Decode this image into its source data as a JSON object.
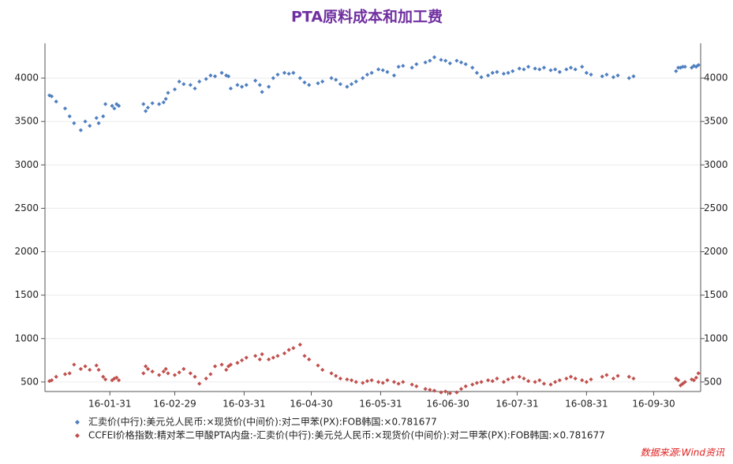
{
  "chart_data": {
    "type": "scatter",
    "title": "PTA原料成本和加工费",
    "x": [
      "16-01-04",
      "16-01-05",
      "16-01-07",
      "16-01-11",
      "16-01-13",
      "16-01-15",
      "16-01-18",
      "16-01-20",
      "16-01-22",
      "16-01-25",
      "16-01-26",
      "16-01-28",
      "16-01-29",
      "16-02-01",
      "16-02-02",
      "16-02-03",
      "16-02-04",
      "16-02-15",
      "16-02-16",
      "16-02-17",
      "16-02-19",
      "16-02-22",
      "16-02-24",
      "16-02-25",
      "16-02-26",
      "16-02-29",
      "16-03-02",
      "16-03-04",
      "16-03-07",
      "16-03-09",
      "16-03-11",
      "16-03-14",
      "16-03-16",
      "16-03-18",
      "16-03-21",
      "16-03-23",
      "16-03-24",
      "16-03-25",
      "16-03-28",
      "16-03-30",
      "16-04-01",
      "16-04-05",
      "16-04-07",
      "16-04-08",
      "16-04-11",
      "16-04-13",
      "16-04-15",
      "16-04-18",
      "16-04-20",
      "16-04-22",
      "16-04-25",
      "16-04-27",
      "16-04-29",
      "16-05-03",
      "16-05-05",
      "16-05-09",
      "16-05-11",
      "16-05-13",
      "16-05-16",
      "16-05-18",
      "16-05-20",
      "16-05-23",
      "16-05-25",
      "16-05-27",
      "16-05-30",
      "16-06-01",
      "16-06-03",
      "16-06-06",
      "16-06-08",
      "16-06-10",
      "16-06-14",
      "16-06-16",
      "16-06-20",
      "16-06-22",
      "16-06-24",
      "16-06-27",
      "16-06-29",
      "16-07-01",
      "16-07-04",
      "16-07-06",
      "16-07-08",
      "16-07-11",
      "16-07-13",
      "16-07-15",
      "16-07-18",
      "16-07-20",
      "16-07-22",
      "16-07-25",
      "16-07-27",
      "16-07-29",
      "16-08-01",
      "16-08-03",
      "16-08-05",
      "16-08-08",
      "16-08-10",
      "16-08-12",
      "16-08-15",
      "16-08-17",
      "16-08-19",
      "16-08-22",
      "16-08-24",
      "16-08-26",
      "16-08-29",
      "16-08-31",
      "16-09-02",
      "16-09-07",
      "16-09-09",
      "16-09-12",
      "16-09-14",
      "16-09-19",
      "16-09-21",
      "16-10-10",
      "16-10-11",
      "16-10-12",
      "16-10-13",
      "16-10-14",
      "16-10-17",
      "16-10-18",
      "16-10-19",
      "16-10-20"
    ],
    "series": [
      {
        "name": "汇卖价(中行):美元兑人民币:×现货价(中间价):对二甲苯(PX):FOB韩国:×0.781677",
        "color": "#4f7fc0",
        "values": [
          3800,
          3790,
          3730,
          3650,
          3560,
          3480,
          3400,
          3500,
          3450,
          3540,
          3480,
          3560,
          3700,
          3680,
          3650,
          3700,
          3680,
          3700,
          3620,
          3660,
          3710,
          3700,
          3720,
          3760,
          3830,
          3870,
          3960,
          3930,
          3920,
          3880,
          3960,
          3990,
          4030,
          4020,
          4060,
          4030,
          4020,
          3880,
          3920,
          3900,
          3920,
          3970,
          3920,
          3840,
          3900,
          4000,
          4040,
          4060,
          4050,
          4060,
          4000,
          3950,
          3920,
          3940,
          3960,
          4000,
          3980,
          3930,
          3900,
          3930,
          3960,
          4000,
          4040,
          4060,
          4100,
          4090,
          4070,
          4030,
          4130,
          4140,
          4120,
          4160,
          4180,
          4200,
          4240,
          4210,
          4200,
          4170,
          4200,
          4180,
          4160,
          4120,
          4060,
          4010,
          4030,
          4060,
          4070,
          4050,
          4060,
          4080,
          4110,
          4100,
          4130,
          4110,
          4100,
          4120,
          4090,
          4100,
          4070,
          4100,
          4120,
          4100,
          4130,
          4060,
          4040,
          4020,
          4040,
          4010,
          4030,
          4000,
          4020,
          4080,
          4120,
          4120,
          4130,
          4130,
          4120,
          4140,
          4130,
          4150
        ]
      },
      {
        "name": "CCFEI价格指数:精对苯二甲酸PTA内盘:-汇卖价(中行):美元兑人民币:×现货价(中间价):对二甲苯(PX):FOB韩国:×0.781677",
        "color": "#c0504d",
        "values": [
          510,
          520,
          560,
          590,
          600,
          700,
          650,
          680,
          640,
          690,
          640,
          560,
          530,
          520,
          540,
          550,
          520,
          600,
          680,
          650,
          620,
          580,
          620,
          650,
          600,
          580,
          610,
          650,
          600,
          560,
          480,
          540,
          590,
          680,
          700,
          640,
          680,
          700,
          720,
          750,
          780,
          800,
          760,
          820,
          760,
          780,
          800,
          830,
          870,
          890,
          930,
          800,
          760,
          690,
          640,
          600,
          570,
          540,
          530,
          520,
          500,
          490,
          510,
          520,
          500,
          490,
          520,
          500,
          480,
          500,
          470,
          450,
          420,
          410,
          400,
          380,
          390,
          370,
          380,
          420,
          450,
          470,
          490,
          500,
          520,
          510,
          540,
          500,
          530,
          550,
          560,
          540,
          510,
          500,
          520,
          480,
          470,
          500,
          520,
          540,
          560,
          540,
          520,
          500,
          530,
          560,
          580,
          540,
          570,
          560,
          540,
          540,
          520,
          460,
          480,
          500,
          530,
          520,
          550,
          600
        ]
      }
    ],
    "xlim": [
      "16-01-02",
      "16-10-21"
    ],
    "xticks": [
      "16-01-31",
      "16-02-29",
      "16-03-31",
      "16-04-30",
      "16-05-31",
      "16-06-30",
      "16-07-31",
      "16-08-31",
      "16-09-30"
    ],
    "ylim": [
      390,
      4400
    ],
    "yticks": [
      500,
      1000,
      1500,
      2000,
      2500,
      3000,
      3500,
      4000
    ],
    "y2lim": [
      390,
      4400
    ],
    "y2ticks": [
      500,
      1000,
      1500,
      2000,
      2500,
      3000,
      3500,
      4000
    ],
    "grid": true,
    "source": "数据来源:Wind资讯"
  }
}
